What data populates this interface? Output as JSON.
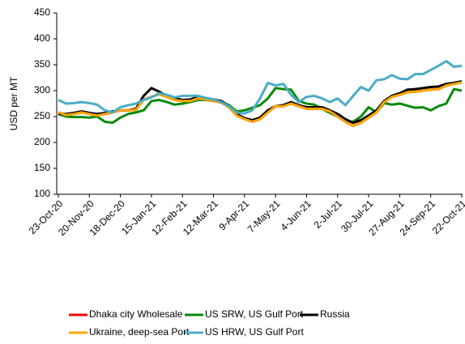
{
  "chart_data": {
    "type": "line",
    "y_label": "USD per MT",
    "categories": [
      "23-Oct-20",
      null,
      null,
      null,
      "20-Nov-20",
      null,
      null,
      null,
      "18-Dec-20",
      null,
      null,
      null,
      "15-Jan-21",
      null,
      null,
      null,
      "12-Feb-21",
      null,
      null,
      null,
      "12-Mar-21",
      null,
      null,
      null,
      "9-Apr-21",
      null,
      null,
      null,
      "7-May-21",
      null,
      null,
      null,
      "4-Jun-21",
      null,
      null,
      null,
      "2-Jul-21",
      null,
      null,
      null,
      "30-Jul-21",
      null,
      null,
      null,
      "27-Aug-21",
      null,
      null,
      null,
      "24-Sep-21",
      null,
      null,
      null,
      "22-Oct-21"
    ],
    "ylim": [
      100,
      450
    ],
    "yticks": [
      100,
      150,
      200,
      250,
      300,
      350,
      400,
      450
    ],
    "grid": false,
    "series": [
      {
        "name": "Dhaka city Wholesale",
        "color": "#ff0000",
        "values": [
          258,
          253,
          255,
          258,
          255,
          252,
          255,
          258,
          262,
          262,
          263,
          283,
          288,
          293,
          288,
          282,
          280,
          280,
          285,
          283,
          280,
          277,
          268,
          252,
          245,
          240,
          245,
          258,
          270,
          270,
          275,
          270,
          265,
          265,
          265,
          260,
          250,
          240,
          232,
          238,
          248,
          258,
          278,
          288,
          292,
          297,
          298,
          300,
          302,
          303,
          310,
          313,
          316
        ]
      },
      {
        "name": "US SRW, US Gulf Port",
        "color": "#0a8a0a",
        "values": [
          255,
          250,
          249,
          249,
          248,
          250,
          240,
          238,
          248,
          255,
          258,
          262,
          280,
          282,
          278,
          273,
          275,
          278,
          282,
          282,
          280,
          278,
          272,
          260,
          262,
          267,
          272,
          285,
          305,
          303,
          302,
          280,
          275,
          273,
          265,
          257,
          250,
          240,
          240,
          250,
          268,
          258,
          276,
          273,
          275,
          271,
          267,
          268,
          262,
          270,
          275,
          303,
          300
        ]
      },
      {
        "name": "Russia",
        "color": "#000000",
        "values": [
          255,
          255,
          257,
          260,
          257,
          255,
          257,
          260,
          262,
          262,
          265,
          290,
          305,
          298,
          290,
          285,
          282,
          283,
          288,
          285,
          283,
          280,
          270,
          255,
          247,
          243,
          248,
          262,
          270,
          272,
          278,
          272,
          268,
          268,
          268,
          262,
          255,
          245,
          238,
          243,
          252,
          262,
          280,
          290,
          295,
          302,
          303,
          305,
          307,
          308,
          313,
          315,
          318
        ]
      },
      {
        "name": "Ukraine, deep-sea Port",
        "color": "#ffa500",
        "values": [
          258,
          253,
          255,
          258,
          255,
          252,
          255,
          258,
          262,
          262,
          263,
          283,
          288,
          293,
          288,
          282,
          280,
          280,
          285,
          283,
          280,
          277,
          268,
          252,
          245,
          240,
          245,
          258,
          270,
          270,
          275,
          270,
          265,
          265,
          265,
          260,
          250,
          240,
          232,
          238,
          248,
          258,
          278,
          288,
          292,
          297,
          298,
          300,
          302,
          303,
          310,
          313,
          316
        ]
      },
      {
        "name": "US HRW, US Gulf Port",
        "color": "#4bacc6",
        "values": [
          282,
          275,
          276,
          278,
          276,
          273,
          262,
          258,
          268,
          272,
          275,
          282,
          287,
          295,
          292,
          287,
          290,
          290,
          290,
          286,
          283,
          278,
          270,
          258,
          256,
          262,
          285,
          315,
          310,
          313,
          292,
          278,
          288,
          290,
          285,
          278,
          285,
          272,
          290,
          307,
          300,
          320,
          322,
          330,
          323,
          322,
          332,
          332,
          340,
          348,
          357,
          346,
          348
        ]
      }
    ]
  }
}
